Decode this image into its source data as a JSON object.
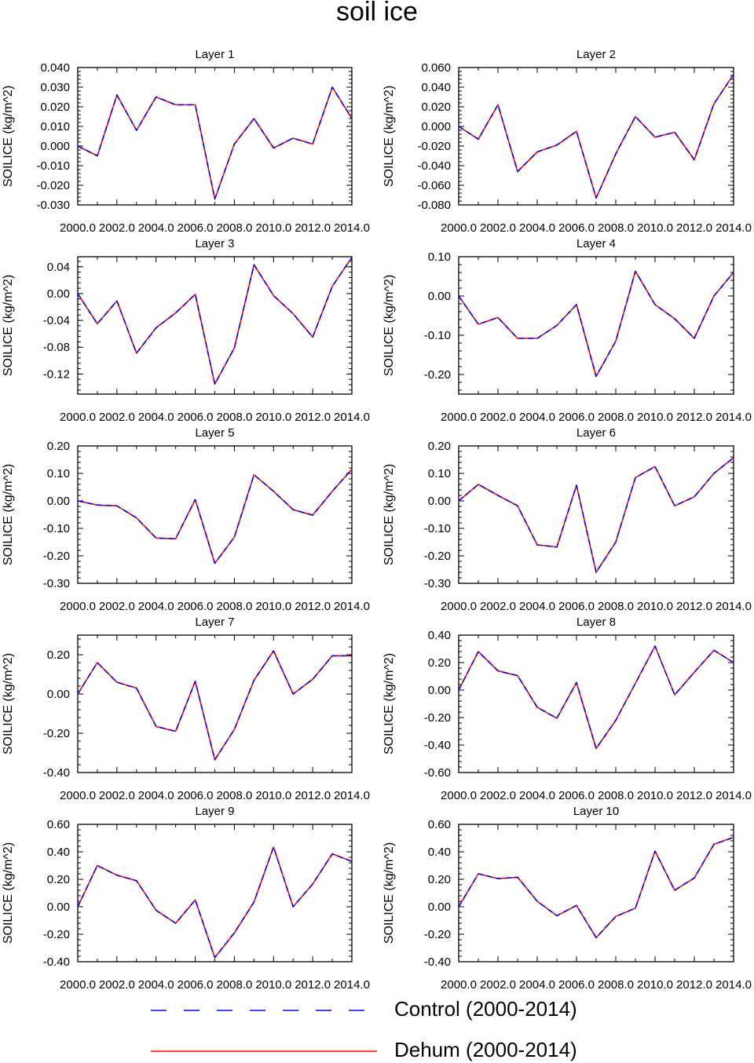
{
  "figure": {
    "title": "soil ice"
  },
  "legend": [
    {
      "label": "Control (2000-2014)",
      "color": "#0000ff",
      "style": "dashed"
    },
    {
      "label": "Dehum (2000-2014)",
      "color": "#ff0000",
      "style": "solid"
    }
  ],
  "colors": {
    "control": "#0000ff",
    "dehum": "#ff0000",
    "axis": "#000000"
  },
  "chart_data": [
    {
      "type": "line",
      "title": "Layer 1",
      "xlabel": "",
      "ylabel": "SOILICE  (kg/m^2)",
      "xlim": [
        2000,
        2014
      ],
      "ylim": [
        -0.03,
        0.04
      ],
      "xticks": [
        2000,
        2002,
        2004,
        2006,
        2008,
        2010,
        2012,
        2014
      ],
      "xtick_labels": [
        "2000.0",
        "2002.0",
        "2004.0",
        "2006.0",
        "2008.0",
        "2010.0",
        "2012.0",
        "2014.0"
      ],
      "yticks": [
        -0.03,
        -0.02,
        -0.01,
        0.0,
        0.01,
        0.02,
        0.03,
        0.04
      ],
      "ytick_labels": [
        "-0.030",
        "-0.020",
        "-0.010",
        "0.000",
        "0.010",
        "0.020",
        "0.030",
        "0.040"
      ],
      "x": [
        2000,
        2001,
        2002,
        2003,
        2004,
        2005,
        2006,
        2007,
        2008,
        2009,
        2010,
        2011,
        2012,
        2013,
        2014
      ],
      "series": [
        {
          "name": "Control (2000-2014)",
          "values": [
            0.0,
            -0.005,
            0.026,
            0.008,
            0.025,
            0.021,
            0.021,
            -0.027,
            0.001,
            0.014,
            -0.001,
            0.004,
            0.001,
            0.03,
            0.014
          ]
        },
        {
          "name": "Dehum (2000-2014)",
          "values": [
            0.0,
            -0.005,
            0.026,
            0.008,
            0.025,
            0.021,
            0.021,
            -0.027,
            0.001,
            0.014,
            -0.001,
            0.004,
            0.001,
            0.03,
            0.014
          ]
        }
      ]
    },
    {
      "type": "line",
      "title": "Layer 2",
      "xlabel": "",
      "ylabel": "SOILICE  (kg/m^2)",
      "xlim": [
        2000,
        2014
      ],
      "ylim": [
        -0.08,
        0.06
      ],
      "xticks": [
        2000,
        2002,
        2004,
        2006,
        2008,
        2010,
        2012,
        2014
      ],
      "xtick_labels": [
        "2000.0",
        "2002.0",
        "2004.0",
        "2006.0",
        "2008.0",
        "2010.0",
        "2012.0",
        "2014.0"
      ],
      "yticks": [
        -0.08,
        -0.06,
        -0.04,
        -0.02,
        0.0,
        0.02,
        0.04,
        0.06
      ],
      "ytick_labels": [
        "-0.080",
        "-0.060",
        "-0.040",
        "-0.020",
        "0.000",
        "0.020",
        "0.040",
        "0.060"
      ],
      "x": [
        2000,
        2001,
        2002,
        2003,
        2004,
        2005,
        2006,
        2007,
        2008,
        2009,
        2010,
        2011,
        2012,
        2013,
        2014
      ],
      "series": [
        {
          "name": "Control (2000-2014)",
          "values": [
            0.0,
            -0.013,
            0.022,
            -0.046,
            -0.026,
            -0.019,
            -0.005,
            -0.073,
            -0.028,
            0.01,
            -0.011,
            -0.006,
            -0.034,
            0.023,
            0.053
          ]
        },
        {
          "name": "Dehum (2000-2014)",
          "values": [
            0.0,
            -0.013,
            0.022,
            -0.046,
            -0.026,
            -0.019,
            -0.005,
            -0.073,
            -0.028,
            0.01,
            -0.011,
            -0.006,
            -0.034,
            0.023,
            0.053
          ]
        }
      ]
    },
    {
      "type": "line",
      "title": "Layer 3",
      "xlabel": "",
      "ylabel": "SOILICE  (kg/m^2)",
      "xlim": [
        2000,
        2014
      ],
      "ylim": [
        -0.15,
        0.055
      ],
      "xticks": [
        2000,
        2002,
        2004,
        2006,
        2008,
        2010,
        2012,
        2014
      ],
      "xtick_labels": [
        "2000.0",
        "2002.0",
        "2004.0",
        "2006.0",
        "2008.0",
        "2010.0",
        "2012.0",
        "2014.0"
      ],
      "yticks": [
        -0.12,
        -0.08,
        -0.04,
        0.0,
        0.04
      ],
      "ytick_labels": [
        "-0.12",
        "-0.08",
        "-0.04",
        "0.00",
        "0.04"
      ],
      "x": [
        2000,
        2001,
        2002,
        2003,
        2004,
        2005,
        2006,
        2007,
        2008,
        2009,
        2010,
        2011,
        2012,
        2013,
        2014
      ],
      "series": [
        {
          "name": "Control (2000-2014)",
          "values": [
            0.0,
            -0.045,
            -0.011,
            -0.089,
            -0.051,
            -0.029,
            -0.001,
            -0.135,
            -0.081,
            0.043,
            -0.003,
            -0.03,
            -0.065,
            0.011,
            0.054
          ]
        },
        {
          "name": "Dehum (2000-2014)",
          "values": [
            0.0,
            -0.045,
            -0.011,
            -0.089,
            -0.051,
            -0.029,
            -0.001,
            -0.135,
            -0.081,
            0.043,
            -0.003,
            -0.03,
            -0.065,
            0.011,
            0.054
          ]
        }
      ]
    },
    {
      "type": "line",
      "title": "Layer 4",
      "xlabel": "",
      "ylabel": "SOILICE  (kg/m^2)",
      "xlim": [
        2000,
        2014
      ],
      "ylim": [
        -0.25,
        0.1
      ],
      "xticks": [
        2000,
        2002,
        2004,
        2006,
        2008,
        2010,
        2012,
        2014
      ],
      "xtick_labels": [
        "2000.0",
        "2002.0",
        "2004.0",
        "2006.0",
        "2008.0",
        "2010.0",
        "2012.0",
        "2014.0"
      ],
      "yticks": [
        -0.2,
        -0.1,
        0.0,
        0.1
      ],
      "ytick_labels": [
        "-0.20",
        "-0.10",
        "0.00",
        "0.10"
      ],
      "x": [
        2000,
        2001,
        2002,
        2003,
        2004,
        2005,
        2006,
        2007,
        2008,
        2009,
        2010,
        2011,
        2012,
        2013,
        2014
      ],
      "series": [
        {
          "name": "Control (2000-2014)",
          "values": [
            0.0,
            -0.072,
            -0.055,
            -0.108,
            -0.108,
            -0.075,
            -0.022,
            -0.205,
            -0.115,
            0.063,
            -0.022,
            -0.058,
            -0.108,
            0.0,
            0.06
          ]
        },
        {
          "name": "Dehum (2000-2014)",
          "values": [
            0.0,
            -0.072,
            -0.055,
            -0.108,
            -0.108,
            -0.075,
            -0.022,
            -0.205,
            -0.115,
            0.063,
            -0.022,
            -0.058,
            -0.108,
            0.0,
            0.06
          ]
        }
      ]
    },
    {
      "type": "line",
      "title": "Layer 5",
      "xlabel": "",
      "ylabel": "SOILICE  (kg/m^2)",
      "xlim": [
        2000,
        2014
      ],
      "ylim": [
        -0.3,
        0.2
      ],
      "xticks": [
        2000,
        2002,
        2004,
        2006,
        2008,
        2010,
        2012,
        2014
      ],
      "xtick_labels": [
        "2000.0",
        "2002.0",
        "2004.0",
        "2006.0",
        "2008.0",
        "2010.0",
        "2012.0",
        "2014.0"
      ],
      "yticks": [
        -0.3,
        -0.2,
        -0.1,
        0.0,
        0.1,
        0.2
      ],
      "ytick_labels": [
        "-0.30",
        "-0.20",
        "-0.10",
        "0.00",
        "0.10",
        "0.20"
      ],
      "x": [
        2000,
        2001,
        2002,
        2003,
        2004,
        2005,
        2006,
        2007,
        2008,
        2009,
        2010,
        2011,
        2012,
        2013,
        2014
      ],
      "series": [
        {
          "name": "Control (2000-2014)",
          "values": [
            0.0,
            -0.015,
            -0.018,
            -0.062,
            -0.135,
            -0.138,
            0.005,
            -0.227,
            -0.132,
            0.095,
            0.035,
            -0.032,
            -0.052,
            0.035,
            0.115
          ]
        },
        {
          "name": "Dehum (2000-2014)",
          "values": [
            0.0,
            -0.015,
            -0.018,
            -0.062,
            -0.135,
            -0.138,
            0.005,
            -0.227,
            -0.132,
            0.095,
            0.035,
            -0.032,
            -0.052,
            0.035,
            0.115
          ]
        }
      ]
    },
    {
      "type": "line",
      "title": "Layer 6",
      "xlabel": "",
      "ylabel": "SOILICE  (kg/m^2)",
      "xlim": [
        2000,
        2014
      ],
      "ylim": [
        -0.3,
        0.2
      ],
      "xticks": [
        2000,
        2002,
        2004,
        2006,
        2008,
        2010,
        2012,
        2014
      ],
      "xtick_labels": [
        "2000.0",
        "2002.0",
        "2004.0",
        "2006.0",
        "2008.0",
        "2010.0",
        "2012.0",
        "2014.0"
      ],
      "yticks": [
        -0.3,
        -0.2,
        -0.1,
        0.0,
        0.1,
        0.2
      ],
      "ytick_labels": [
        "-0.30",
        "-0.20",
        "-0.10",
        "0.00",
        "0.10",
        "0.20"
      ],
      "x": [
        2000,
        2001,
        2002,
        2003,
        2004,
        2005,
        2006,
        2007,
        2008,
        2009,
        2010,
        2011,
        2012,
        2013,
        2014
      ],
      "series": [
        {
          "name": "Control (2000-2014)",
          "values": [
            0.0,
            0.06,
            0.02,
            -0.018,
            -0.16,
            -0.168,
            0.057,
            -0.26,
            -0.15,
            0.085,
            0.125,
            -0.018,
            0.015,
            0.1,
            0.157
          ]
        },
        {
          "name": "Dehum (2000-2014)",
          "values": [
            0.0,
            0.06,
            0.02,
            -0.018,
            -0.16,
            -0.168,
            0.057,
            -0.26,
            -0.15,
            0.085,
            0.125,
            -0.018,
            0.015,
            0.1,
            0.157
          ]
        }
      ]
    },
    {
      "type": "line",
      "title": "Layer 7",
      "xlabel": "",
      "ylabel": "SOILICE  (kg/m^2)",
      "xlim": [
        2000,
        2014
      ],
      "ylim": [
        -0.4,
        0.3
      ],
      "xticks": [
        2000,
        2002,
        2004,
        2006,
        2008,
        2010,
        2012,
        2014
      ],
      "xtick_labels": [
        "2000.0",
        "2002.0",
        "2004.0",
        "2006.0",
        "2008.0",
        "2010.0",
        "2012.0",
        "2014.0"
      ],
      "yticks": [
        -0.4,
        -0.2,
        0.0,
        0.2
      ],
      "ytick_labels": [
        "-0.40",
        "-0.20",
        "0.00",
        "0.20"
      ],
      "x": [
        2000,
        2001,
        2002,
        2003,
        2004,
        2005,
        2006,
        2007,
        2008,
        2009,
        2010,
        2011,
        2012,
        2013,
        2014
      ],
      "series": [
        {
          "name": "Control (2000-2014)",
          "values": [
            0.0,
            0.16,
            0.06,
            0.03,
            -0.165,
            -0.19,
            0.065,
            -0.335,
            -0.18,
            0.07,
            0.22,
            0.0,
            0.075,
            0.195,
            0.195
          ]
        },
        {
          "name": "Dehum (2000-2014)",
          "values": [
            0.0,
            0.16,
            0.06,
            0.03,
            -0.165,
            -0.19,
            0.065,
            -0.335,
            -0.18,
            0.07,
            0.22,
            0.0,
            0.075,
            0.195,
            0.195
          ]
        }
      ]
    },
    {
      "type": "line",
      "title": "Layer 8",
      "xlabel": "",
      "ylabel": "SOILICE  (kg/m^2)",
      "xlim": [
        2000,
        2014
      ],
      "ylim": [
        -0.6,
        0.4
      ],
      "xticks": [
        2000,
        2002,
        2004,
        2006,
        2008,
        2010,
        2012,
        2014
      ],
      "xtick_labels": [
        "2000.0",
        "2002.0",
        "2004.0",
        "2006.0",
        "2008.0",
        "2010.0",
        "2012.0",
        "2014.0"
      ],
      "yticks": [
        -0.6,
        -0.4,
        -0.2,
        0.0,
        0.2,
        0.4
      ],
      "ytick_labels": [
        "-0.60",
        "-0.40",
        "-0.20",
        "0.00",
        "0.20",
        "0.40"
      ],
      "x": [
        2000,
        2001,
        2002,
        2003,
        2004,
        2005,
        2006,
        2007,
        2008,
        2009,
        2010,
        2011,
        2012,
        2013,
        2014
      ],
      "series": [
        {
          "name": "Control (2000-2014)",
          "values": [
            0.0,
            0.28,
            0.14,
            0.105,
            -0.125,
            -0.205,
            0.055,
            -0.425,
            -0.22,
            0.05,
            0.32,
            -0.035,
            0.13,
            0.29,
            0.2
          ]
        },
        {
          "name": "Dehum (2000-2014)",
          "values": [
            0.0,
            0.28,
            0.14,
            0.105,
            -0.125,
            -0.205,
            0.055,
            -0.425,
            -0.22,
            0.05,
            0.32,
            -0.035,
            0.13,
            0.29,
            0.2
          ]
        }
      ]
    },
    {
      "type": "line",
      "title": "Layer 9",
      "xlabel": "",
      "ylabel": "SOILICE  (kg/m^2)",
      "xlim": [
        2000,
        2014
      ],
      "ylim": [
        -0.4,
        0.6
      ],
      "xticks": [
        2000,
        2002,
        2004,
        2006,
        2008,
        2010,
        2012,
        2014
      ],
      "xtick_labels": [
        "2000.0",
        "2002.0",
        "2004.0",
        "2006.0",
        "2008.0",
        "2010.0",
        "2012.0",
        "2014.0"
      ],
      "yticks": [
        -0.4,
        -0.2,
        0.0,
        0.2,
        0.4,
        0.6
      ],
      "ytick_labels": [
        "-0.40",
        "-0.20",
        "0.00",
        "0.20",
        "0.40",
        "0.60"
      ],
      "x": [
        2000,
        2001,
        2002,
        2003,
        2004,
        2005,
        2006,
        2007,
        2008,
        2009,
        2010,
        2011,
        2012,
        2013,
        2014
      ],
      "series": [
        {
          "name": "Control (2000-2014)",
          "values": [
            0.0,
            0.3,
            0.23,
            0.19,
            -0.025,
            -0.12,
            0.05,
            -0.37,
            -0.19,
            0.035,
            0.435,
            0.0,
            0.165,
            0.385,
            0.33
          ]
        },
        {
          "name": "Dehum (2000-2014)",
          "values": [
            0.0,
            0.3,
            0.23,
            0.19,
            -0.025,
            -0.12,
            0.05,
            -0.37,
            -0.19,
            0.035,
            0.435,
            0.0,
            0.165,
            0.385,
            0.33
          ]
        }
      ]
    },
    {
      "type": "line",
      "title": "Layer 10",
      "xlabel": "",
      "ylabel": "SOILICE  (kg/m^2)",
      "xlim": [
        2000,
        2014
      ],
      "ylim": [
        -0.4,
        0.6
      ],
      "xticks": [
        2000,
        2002,
        2004,
        2006,
        2008,
        2010,
        2012,
        2014
      ],
      "xtick_labels": [
        "2000.0",
        "2002.0",
        "2004.0",
        "2006.0",
        "2008.0",
        "2010.0",
        "2012.0",
        "2014.0"
      ],
      "yticks": [
        -0.4,
        -0.2,
        0.0,
        0.2,
        0.4,
        0.6
      ],
      "ytick_labels": [
        "-0.40",
        "-0.20",
        "0.00",
        "0.20",
        "0.40",
        "0.60"
      ],
      "x": [
        2000,
        2001,
        2002,
        2003,
        2004,
        2005,
        2006,
        2007,
        2008,
        2009,
        2010,
        2011,
        2012,
        2013,
        2014
      ],
      "series": [
        {
          "name": "Control (2000-2014)",
          "values": [
            0.0,
            0.24,
            0.205,
            0.215,
            0.04,
            -0.065,
            0.01,
            -0.225,
            -0.07,
            -0.01,
            0.405,
            0.12,
            0.21,
            0.455,
            0.505
          ]
        },
        {
          "name": "Dehum (2000-2014)",
          "values": [
            0.0,
            0.24,
            0.205,
            0.215,
            0.04,
            -0.065,
            0.01,
            -0.225,
            -0.07,
            -0.01,
            0.405,
            0.12,
            0.21,
            0.455,
            0.505
          ]
        }
      ]
    }
  ]
}
